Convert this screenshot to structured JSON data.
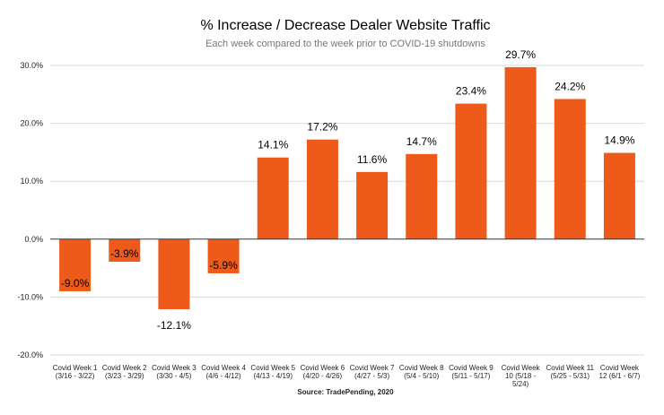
{
  "chart_data": {
    "type": "bar",
    "title": "% Increase / Decrease Dealer Website Traffic",
    "subtitle": "Each week compared to the week prior to COVID-19 shutdowns",
    "xlabel": "",
    "ylabel": "",
    "ylim": [
      -20,
      30
    ],
    "yticks": [
      30,
      20,
      10,
      0,
      -10,
      -20
    ],
    "ytick_labels": [
      "30.0%",
      "20.0%",
      "10.0%",
      "0.0%",
      "-10.0%",
      "-20.0%"
    ],
    "grid": true,
    "legend": "none",
    "bar_color": "#EE5A1A",
    "categories": [
      [
        "Covid Week 1",
        "(3/16 - 3/22)"
      ],
      [
        "Covid Week 2",
        "(3/23 - 3/29)"
      ],
      [
        "Covid Week 3",
        "(3/30 - 4/5)"
      ],
      [
        "Covid Week 4",
        "(4/6 - 4/12)"
      ],
      [
        "Covid Week 5",
        "(4/13 - 4/19)"
      ],
      [
        "Covid Week 6",
        "(4/20 - 4/26)"
      ],
      [
        "Covid Week 7",
        "(4/27 - 5/3)"
      ],
      [
        "Covid Week 8",
        "(5/4 - 5/10)"
      ],
      [
        "Covid Week 9",
        "(5/11 - 5/17)"
      ],
      [
        "Covid Week",
        "10 (5/18 -",
        "5/24)"
      ],
      [
        "Covid Week 11",
        "(5/25 - 5/31)"
      ],
      [
        "Covid Week",
        "12 (6/1 - 6/7)"
      ]
    ],
    "values": [
      -9.0,
      -3.9,
      -12.1,
      -5.9,
      14.1,
      17.2,
      11.6,
      14.7,
      23.4,
      29.7,
      24.2,
      14.9
    ],
    "data_labels": [
      "-9.0%",
      "-3.9%",
      "-12.1%",
      "-5.9%",
      "14.1%",
      "17.2%",
      "11.6%",
      "14.7%",
      "23.4%",
      "29.7%",
      "24.2%",
      "14.9%"
    ],
    "source": "Source: TradePending, 2020"
  }
}
